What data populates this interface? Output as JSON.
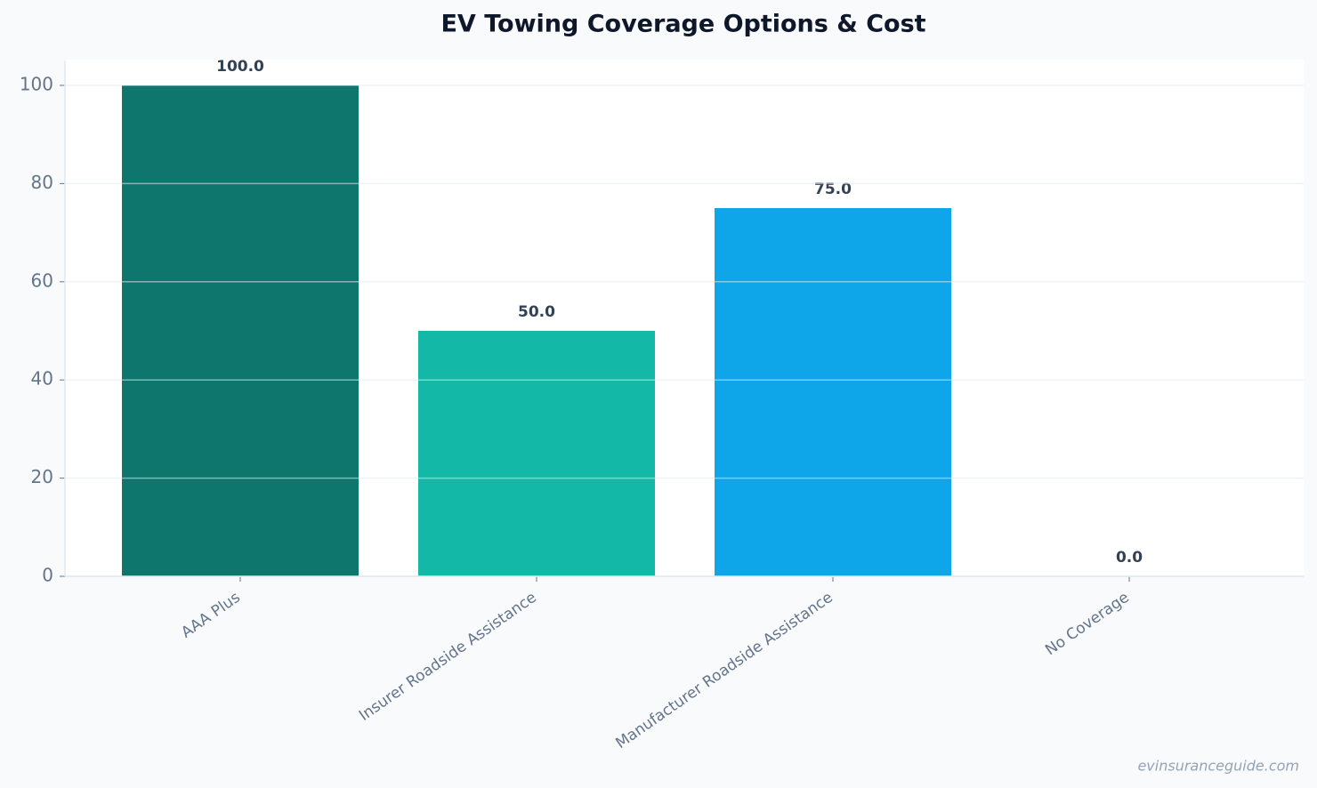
{
  "chart_data": {
    "type": "bar",
    "title": "EV Towing Coverage Options & Cost",
    "categories": [
      "AAA Plus",
      "Insurer Roadside Assistance",
      "Manufacturer Roadside Assistance",
      "No Coverage"
    ],
    "values": [
      100,
      50,
      75,
      0
    ],
    "value_labels": [
      "100.0",
      "50.0",
      "75.0",
      "0.0"
    ],
    "colors": [
      "#0f766e",
      "#14b8a6",
      "#0ea5e9",
      "#64748b"
    ],
    "ylim": [
      0,
      105
    ],
    "yticks": [
      0,
      20,
      40,
      60,
      80,
      100
    ],
    "grid": true,
    "source": "evinsuranceguide.com"
  }
}
